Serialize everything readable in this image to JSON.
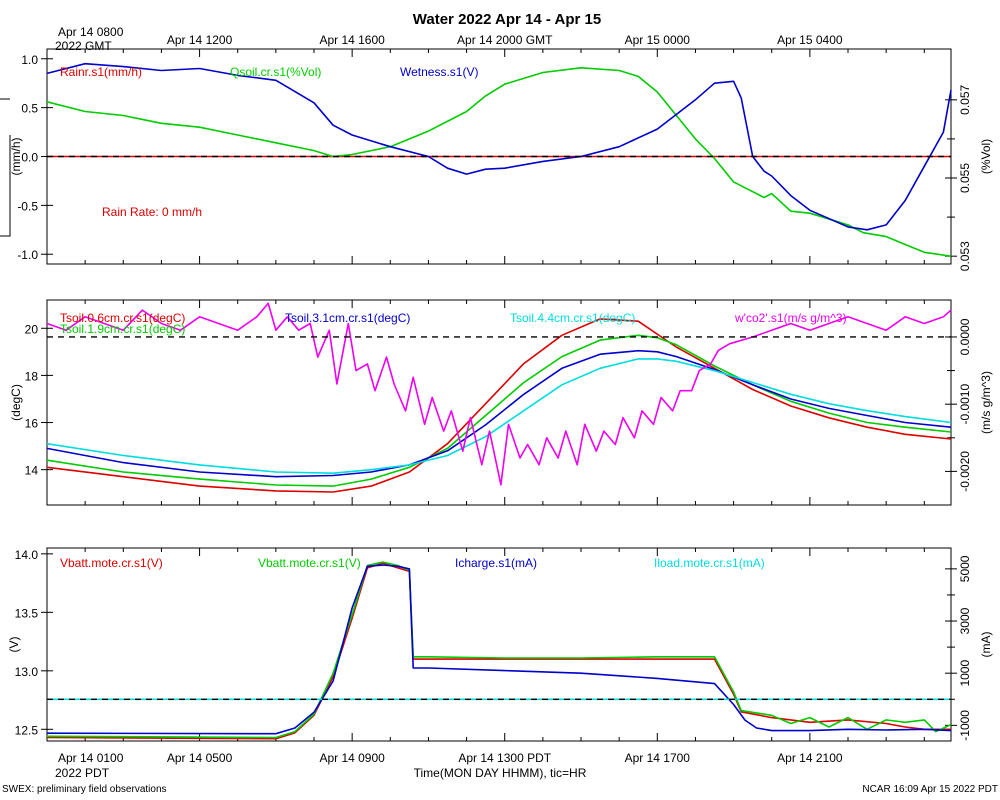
{
  "title": "Water 2022 Apr 14 - Apr 15",
  "top_axis": {
    "first_label_line1": "Apr 14 0800",
    "first_label_line2": "2022 GMT",
    "labels": [
      {
        "t": 4,
        "text": "Apr 14 1200"
      },
      {
        "t": 8,
        "text": "Apr 14 1600"
      },
      {
        "t": 12,
        "text": "Apr 14 2000 GMT"
      },
      {
        "t": 16,
        "text": "Apr 15 0000"
      },
      {
        "t": 20,
        "text": "Apr 15 0400"
      }
    ]
  },
  "bottom_axis": {
    "first_label_line1": "Apr 14 0100",
    "first_label_line2": "2022 PDT",
    "labels": [
      {
        "t": 4,
        "text": "Apr 14 0500"
      },
      {
        "t": 8,
        "text": "Apr 14 0900"
      },
      {
        "t": 12,
        "text": "Apr 14 1300 PDT"
      },
      {
        "t": 16,
        "text": "Apr 14 1700"
      },
      {
        "t": 20,
        "text": "Apr 14 2100"
      }
    ],
    "xlabel": "Time(MON DAY HHMM), tic=HR"
  },
  "footer": {
    "left": "SWEX: preliminary field observations",
    "right": "NCAR 16:09 Apr 15 2022 PDT"
  },
  "chart_data": [
    {
      "type": "line",
      "panel": "rain",
      "xlim": [
        0,
        23.7
      ],
      "ylim_left": [
        -1.1,
        1.1
      ],
      "ylim_right": [
        0.0528,
        0.0583
      ],
      "ylabel_left": "(mm/h)",
      "ylabel_right": "(%Vol)",
      "yticks_left": [
        {
          "v": -1.0,
          "label": "-1.0"
        },
        {
          "v": -0.5,
          "label": "-0.5"
        },
        {
          "v": 0.0,
          "label": "0.0"
        },
        {
          "v": 0.5,
          "label": "0.5"
        },
        {
          "v": 1.0,
          "label": "1.0"
        }
      ],
      "yticks_right": [
        {
          "v": 0.053,
          "label": "0.053"
        },
        {
          "v": 0.055,
          "label": "0.055"
        },
        {
          "v": 0.057,
          "label": "0.057"
        }
      ],
      "yticks_right_minor": [
        0.054,
        0.056
      ],
      "zero_line": 0.0,
      "annotation": "Rain Rate: 0 mm/h",
      "series": [
        {
          "name": "Rainr.s1(mm/h)",
          "color": "#dd0000",
          "axis": "left",
          "x": [
            0,
            23.7
          ],
          "values": [
            0,
            0
          ]
        },
        {
          "name": "Qsoil.cr.s1(%Vol)",
          "color": "#00cc00",
          "axis": "right",
          "x": [
            0,
            1,
            2,
            3,
            4,
            5,
            6,
            7,
            7.5,
            8,
            9,
            10,
            11,
            11.5,
            12,
            13,
            14,
            15,
            15.5,
            16,
            16.5,
            17,
            17.5,
            18,
            18.5,
            18.8,
            19,
            19.5,
            20,
            21,
            21.4,
            22,
            22.5,
            23,
            23.7
          ],
          "values": [
            0.05695,
            0.0567,
            0.0566,
            0.0564,
            0.0563,
            0.0561,
            0.0559,
            0.0557,
            0.05555,
            0.0556,
            0.0558,
            0.0562,
            0.0567,
            0.0571,
            0.0574,
            0.0577,
            0.05782,
            0.05775,
            0.0576,
            0.0572,
            0.0566,
            0.056,
            0.0555,
            0.0549,
            0.05465,
            0.0545,
            0.0546,
            0.05415,
            0.0541,
            0.0538,
            0.0536,
            0.0535,
            0.0533,
            0.0531,
            0.053
          ]
        },
        {
          "name": "Wetness.s1(V)",
          "color": "#0000cc",
          "axis": "left",
          "x": [
            0,
            1,
            2,
            3,
            4,
            5,
            6,
            7,
            7.5,
            8,
            9,
            10,
            10.5,
            11,
            11.5,
            12,
            13,
            14,
            15,
            16,
            17,
            17.5,
            18,
            18.2,
            18.5,
            18.8,
            19,
            19.5,
            20,
            21,
            21.5,
            22,
            22.5,
            23,
            23.5,
            23.7
          ],
          "values": [
            0.85,
            0.95,
            0.92,
            0.88,
            0.9,
            0.83,
            0.78,
            0.55,
            0.32,
            0.22,
            0.1,
            0.0,
            -0.12,
            -0.18,
            -0.13,
            -0.12,
            -0.05,
            0.0,
            0.1,
            0.28,
            0.58,
            0.75,
            0.77,
            0.6,
            0.0,
            -0.15,
            -0.2,
            -0.4,
            -0.55,
            -0.72,
            -0.75,
            -0.7,
            -0.45,
            -0.1,
            0.25,
            0.68
          ]
        }
      ]
    },
    {
      "type": "line",
      "panel": "temperature",
      "xlim": [
        0,
        23.7
      ],
      "ylim_left": [
        12.5,
        21.2
      ],
      "ylim_right": [
        -0.0025,
        0.00055
      ],
      "ylabel_left": "(degC)",
      "ylabel_right": "(m/s g/m^3)",
      "yticks_left": [
        {
          "v": 14,
          "label": "14"
        },
        {
          "v": 16,
          "label": "16"
        },
        {
          "v": 18,
          "label": "18"
        },
        {
          "v": 20,
          "label": "20"
        }
      ],
      "yticks_right": [
        {
          "v": -0.002,
          "label": "-0.0020"
        },
        {
          "v": -0.001,
          "label": "-0.0010"
        },
        {
          "v": 0.0,
          "label": "0.0000"
        }
      ],
      "yticks_right_minor": [
        -0.0015,
        -0.0005
      ],
      "zero_line_right": 0.0,
      "series": [
        {
          "name": "Tsoil.0.6cm.cr.s1(degC)",
          "color": "#dd0000",
          "axis": "left",
          "x": [
            0,
            2,
            4,
            6,
            7.5,
            8.5,
            9.5,
            10.5,
            11.5,
            12.5,
            13.5,
            14.5,
            15.5,
            16.5,
            17.5,
            18.5,
            19.5,
            20.5,
            21.5,
            22.5,
            23.7
          ],
          "values": [
            14.1,
            13.7,
            13.3,
            13.1,
            13.05,
            13.3,
            13.9,
            15.1,
            16.8,
            18.5,
            19.7,
            20.4,
            20.3,
            19.2,
            18.3,
            17.4,
            16.7,
            16.2,
            15.8,
            15.5,
            15.3
          ]
        },
        {
          "name": "Tsoil.1.9cm.cr.s1(degC)",
          "color": "#00cc00",
          "axis": "left",
          "x": [
            0,
            2,
            4,
            6,
            7.5,
            8.5,
            9.5,
            10.5,
            11.5,
            12.5,
            13.5,
            14.5,
            15.5,
            16,
            16.5,
            17.5,
            18.5,
            19.5,
            20.5,
            21.5,
            22.5,
            23.7
          ],
          "values": [
            14.4,
            13.9,
            13.6,
            13.35,
            13.3,
            13.6,
            14.1,
            14.9,
            16.3,
            17.7,
            18.8,
            19.5,
            19.7,
            19.6,
            19.3,
            18.4,
            17.6,
            16.9,
            16.4,
            16.0,
            15.8,
            15.6
          ]
        },
        {
          "name": "Tsoil.3.1cm.cr.s1(degC)",
          "color": "#0000cc",
          "axis": "left",
          "x": [
            0,
            2,
            4,
            6,
            7.5,
            8.5,
            9.5,
            10.5,
            11.5,
            12.5,
            13.5,
            14.5,
            15.5,
            16,
            16.5,
            17.5,
            18.5,
            19.5,
            20.5,
            21.5,
            22.5,
            23.7
          ],
          "values": [
            14.9,
            14.3,
            13.9,
            13.7,
            13.75,
            13.9,
            14.2,
            14.8,
            15.9,
            17.2,
            18.3,
            18.9,
            19.05,
            19.0,
            18.8,
            18.25,
            17.6,
            17.0,
            16.6,
            16.3,
            16.0,
            15.8
          ]
        },
        {
          "name": "Tsoil.4.4cm.cr.s1(degC)",
          "color": "#00dddd",
          "axis": "left",
          "x": [
            0,
            2,
            4,
            6,
            7.5,
            8.5,
            9.5,
            10.5,
            11.5,
            12.5,
            13.5,
            14.5,
            15.5,
            16,
            16.5,
            17.5,
            18.5,
            19.5,
            20.5,
            21.5,
            22.5,
            23.7
          ],
          "values": [
            15.1,
            14.6,
            14.2,
            13.9,
            13.85,
            14.0,
            14.2,
            14.6,
            15.4,
            16.5,
            17.6,
            18.3,
            18.7,
            18.7,
            18.6,
            18.2,
            17.7,
            17.2,
            16.8,
            16.5,
            16.25,
            16.0
          ]
        },
        {
          "name": "w'co2'.s1(m/s g/m^3)",
          "color": "#ee00ee",
          "axis": "right",
          "x": [
            0,
            0.5,
            1,
            1.5,
            2,
            2.5,
            3,
            3.5,
            4,
            4.5,
            5,
            5.5,
            5.8,
            6,
            6.3,
            6.6,
            6.9,
            7.1,
            7.4,
            7.6,
            7.9,
            8.1,
            8.4,
            8.6,
            8.9,
            9.1,
            9.4,
            9.6,
            9.9,
            10.1,
            10.4,
            10.6,
            10.9,
            11.1,
            11.4,
            11.6,
            11.9,
            12.1,
            12.4,
            12.6,
            12.9,
            13.1,
            13.4,
            13.6,
            13.9,
            14.1,
            14.4,
            14.6,
            14.9,
            15.1,
            15.4,
            15.6,
            15.9,
            16.1,
            16.4,
            16.6,
            16.9,
            17.1,
            17.4,
            17.6,
            17.9,
            18.5,
            19,
            19.5,
            20,
            20.5,
            21,
            21.5,
            22,
            22.5,
            23,
            23.5,
            23.7
          ],
          "values": [
            0.0002,
            0.0001,
            0.0003,
            0.0002,
            0.0001,
            0.0004,
            0.0002,
            0.0001,
            0.0003,
            0.0002,
            0.0001,
            0.0003,
            0.0005,
            0.0001,
            0.0003,
            0.0001,
            0.0002,
            -0.0003,
            0.0001,
            -0.0007,
            0.0002,
            -0.0005,
            -0.0004,
            -0.0008,
            -0.0003,
            -0.0007,
            -0.0011,
            -0.0006,
            -0.0013,
            -0.0009,
            -0.0014,
            -0.0011,
            -0.0017,
            -0.0012,
            -0.0019,
            -0.0014,
            -0.0022,
            -0.0013,
            -0.0018,
            -0.0016,
            -0.0019,
            -0.0015,
            -0.0018,
            -0.0014,
            -0.0019,
            -0.0013,
            -0.0017,
            -0.0014,
            -0.0016,
            -0.0012,
            -0.0015,
            -0.0011,
            -0.0013,
            -0.0009,
            -0.0011,
            -0.0008,
            -0.0008,
            -0.0005,
            -0.0004,
            -0.0002,
            -0.0001,
            0.0,
            0.0001,
            0.0002,
            0.0001,
            0.0002,
            0.0003,
            0.0002,
            0.0001,
            0.0003,
            0.0002,
            0.0003,
            0.0004
          ]
        }
      ]
    },
    {
      "type": "line",
      "panel": "power",
      "xlim": [
        0,
        23.7
      ],
      "ylim_left": [
        12.4,
        14.05
      ],
      "ylim_right": [
        -1600,
        5800
      ],
      "ylabel_left": "(V)",
      "ylabel_right": "(mA)",
      "yticks_left": [
        {
          "v": 12.5,
          "label": "12.5"
        },
        {
          "v": 13.0,
          "label": "13.0"
        },
        {
          "v": 13.5,
          "label": "13.5"
        },
        {
          "v": 14.0,
          "label": "14.0"
        }
      ],
      "yticks_right": [
        {
          "v": -1000,
          "label": "-1000"
        },
        {
          "v": 1000,
          "label": "1000"
        },
        {
          "v": 3000,
          "label": "3000"
        },
        {
          "v": 5000,
          "label": "5000"
        }
      ],
      "yticks_right_minor": [
        0,
        2000,
        4000
      ],
      "zero_line_right": 0,
      "series": [
        {
          "name": "Vbatt.mote.cr.s1(V)",
          "color": "#dd0000",
          "axis": "left",
          "x": [
            0,
            6,
            6.5,
            7,
            7.5,
            8,
            8.4,
            8.8,
            9.2,
            9.5,
            9.6,
            10,
            12,
            14,
            16,
            17.5,
            18,
            18.2,
            19,
            20,
            21,
            22,
            22.5,
            23,
            23.7
          ],
          "values": [
            12.43,
            12.42,
            12.47,
            12.62,
            12.95,
            13.45,
            13.88,
            13.92,
            13.88,
            13.85,
            13.1,
            13.1,
            13.1,
            13.1,
            13.1,
            13.1,
            12.8,
            12.65,
            12.6,
            12.56,
            12.58,
            12.55,
            12.52,
            12.5,
            12.5
          ]
        },
        {
          "name": "Vbatt.mote.cr.s1(V)",
          "color": "#00cc00",
          "axis": "left",
          "x": [
            0,
            6,
            6.5,
            7,
            7.5,
            8,
            8.4,
            8.8,
            9.2,
            9.5,
            9.6,
            10,
            12,
            14,
            16,
            17.5,
            18,
            18.2,
            19,
            19.5,
            20,
            20.5,
            21,
            21.5,
            22,
            22.5,
            23,
            23.3,
            23.7
          ],
          "values": [
            12.44,
            12.43,
            12.48,
            12.63,
            12.98,
            13.48,
            13.9,
            13.93,
            13.9,
            13.86,
            13.12,
            13.12,
            13.11,
            13.11,
            13.12,
            13.12,
            12.82,
            12.66,
            12.62,
            12.55,
            12.6,
            12.52,
            12.6,
            12.5,
            12.58,
            12.56,
            12.58,
            12.48,
            12.54
          ]
        },
        {
          "name": "Icharge.s1(mA)",
          "color": "#0000cc",
          "axis": "right",
          "x": [
            0,
            6,
            6.5,
            7,
            7.5,
            8,
            8.4,
            8.8,
            9.2,
            9.5,
            9.6,
            10,
            12,
            14,
            16,
            17.5,
            18,
            18.3,
            18.6,
            19,
            20,
            21,
            22,
            23,
            23.7
          ],
          "values": [
            -1300,
            -1320,
            -1100,
            -500,
            700,
            3500,
            5100,
            5150,
            5100,
            5000,
            1200,
            1200,
            1100,
            1000,
            800,
            600,
            -200,
            -800,
            -1100,
            -1200,
            -1200,
            -1150,
            -1180,
            -1150,
            -1200
          ]
        },
        {
          "name": "Iload.mote.cr.s1(mA)",
          "color": "#00dddd",
          "axis": "right",
          "x": [
            0,
            23.7
          ],
          "values": [
            0,
            0
          ]
        }
      ]
    }
  ]
}
